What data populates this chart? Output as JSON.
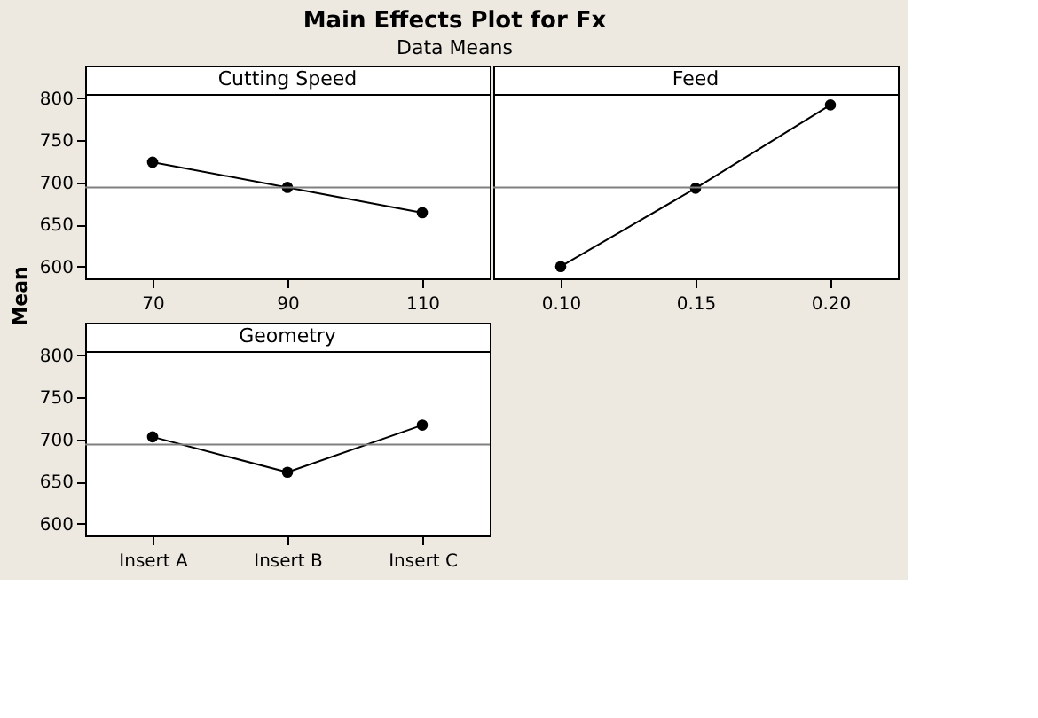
{
  "chart_data": [
    {
      "type": "other",
      "title": "Main Effects Plot for Fx",
      "subtitle": "Data Means"
    },
    {
      "type": "line",
      "title": "Cutting Speed",
      "ylabel": "Mean",
      "categories": [
        "70",
        "90",
        "110"
      ],
      "values": [
        724,
        694,
        664
      ],
      "color": "#000000",
      "marker": "circle",
      "line_style": "solid",
      "ylim": [
        586,
        805
      ],
      "yticks": [
        600,
        650,
        700,
        750,
        800
      ],
      "ref_lines": [
        {
          "axis": "y",
          "value": 694,
          "color": "#808080"
        }
      ]
    },
    {
      "type": "line",
      "title": "Feed",
      "categories": [
        "0.10",
        "0.15",
        "0.20"
      ],
      "values": [
        600,
        693,
        792
      ],
      "color": "#000000",
      "marker": "circle",
      "line_style": "solid",
      "ylim": [
        586,
        805
      ],
      "tick_labels": "x",
      "ref_lines": [
        {
          "axis": "y",
          "value": 694,
          "color": "#808080"
        }
      ]
    },
    {
      "type": "line",
      "title": "Geometry",
      "categories": [
        "Insert A",
        "Insert B",
        "Insert C"
      ],
      "values": [
        703,
        661,
        717
      ],
      "color": "#000000",
      "marker": "circle",
      "line_style": "solid",
      "ylim": [
        586,
        805
      ],
      "yticks": [
        600,
        650,
        700,
        750,
        800
      ],
      "ref_lines": [
        {
          "axis": "y",
          "value": 694,
          "color": "#808080"
        }
      ]
    }
  ]
}
